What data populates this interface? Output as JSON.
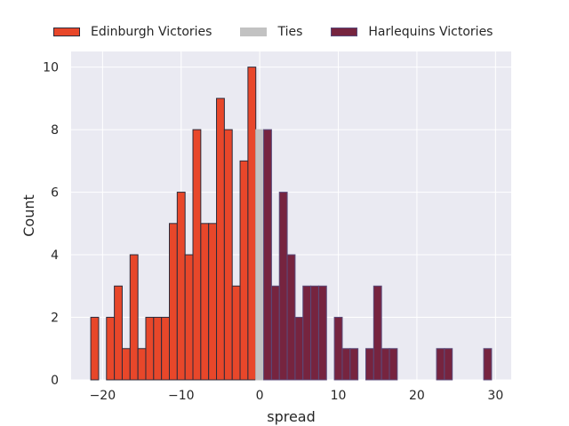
{
  "chart_data": {
    "type": "bar",
    "title": "",
    "xlabel": "spread",
    "ylabel": "Count",
    "xlim": [
      -24,
      32
    ],
    "ylim": [
      0,
      10.5
    ],
    "xticks": [
      -20,
      -10,
      0,
      10,
      20,
      30
    ],
    "yticks": [
      0,
      2,
      4,
      6,
      8,
      10
    ],
    "grid": true,
    "legend_position": "top-center",
    "series": [
      {
        "name": "Edinburgh Victories",
        "color": "#e8472a",
        "edge_color": "#2b2b3b",
        "bins": [
          {
            "x": -21,
            "count": 2
          },
          {
            "x": -19,
            "count": 2
          },
          {
            "x": -18,
            "count": 3
          },
          {
            "x": -17,
            "count": 1
          },
          {
            "x": -16,
            "count": 4
          },
          {
            "x": -15,
            "count": 1
          },
          {
            "x": -14,
            "count": 2
          },
          {
            "x": -13,
            "count": 2
          },
          {
            "x": -12,
            "count": 2
          },
          {
            "x": -11,
            "count": 5
          },
          {
            "x": -10,
            "count": 6
          },
          {
            "x": -9,
            "count": 4
          },
          {
            "x": -8,
            "count": 8
          },
          {
            "x": -7,
            "count": 5
          },
          {
            "x": -6,
            "count": 5
          },
          {
            "x": -5,
            "count": 9
          },
          {
            "x": -4,
            "count": 8
          },
          {
            "x": -3,
            "count": 3
          },
          {
            "x": -2,
            "count": 7
          },
          {
            "x": -1,
            "count": 10
          }
        ]
      },
      {
        "name": "Ties",
        "color": "#c2c2c2",
        "edge_color": "#c2c2c2",
        "bins": [
          {
            "x": 0,
            "count": 8
          }
        ]
      },
      {
        "name": "Harlequins Victories",
        "color": "#76243f",
        "edge_color": "#5a4a7a",
        "bins": [
          {
            "x": 1,
            "count": 8
          },
          {
            "x": 2,
            "count": 3
          },
          {
            "x": 3,
            "count": 6
          },
          {
            "x": 4,
            "count": 4
          },
          {
            "x": 5,
            "count": 2
          },
          {
            "x": 6,
            "count": 3
          },
          {
            "x": 7,
            "count": 3
          },
          {
            "x": 8,
            "count": 3
          },
          {
            "x": 10,
            "count": 2
          },
          {
            "x": 11,
            "count": 1
          },
          {
            "x": 12,
            "count": 1
          },
          {
            "x": 14,
            "count": 1
          },
          {
            "x": 15,
            "count": 3
          },
          {
            "x": 16,
            "count": 1
          },
          {
            "x": 17,
            "count": 1
          },
          {
            "x": 23,
            "count": 1
          },
          {
            "x": 24,
            "count": 1
          },
          {
            "x": 29,
            "count": 1
          }
        ]
      }
    ]
  }
}
